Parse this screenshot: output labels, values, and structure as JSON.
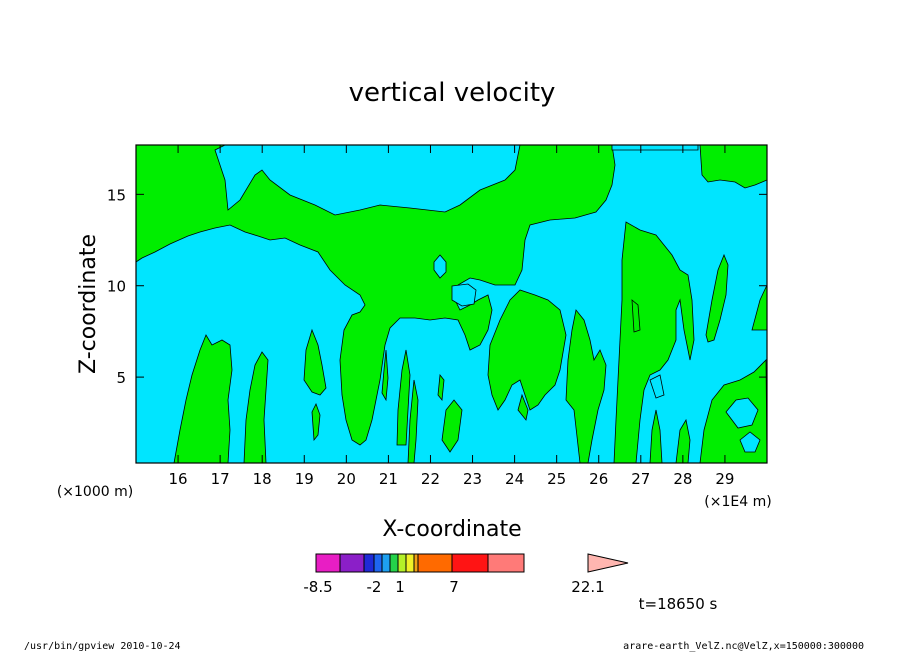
{
  "chart_data": {
    "type": "heatmap",
    "title": "vertical velocity",
    "xlabel": "X-coordinate",
    "ylabel": "Z-coordinate",
    "x_unit_left": "(×1000 m)",
    "x_unit_right": "(×1E4 m)",
    "x_ticks": [
      16,
      17,
      18,
      19,
      20,
      21,
      22,
      23,
      24,
      25,
      26,
      27,
      28,
      29
    ],
    "y_ticks": [
      5,
      10,
      15
    ],
    "xlim": [
      15.0,
      30.0
    ],
    "ylim": [
      0.3,
      17.7
    ],
    "grid": false,
    "field_colors": {
      "background": "#00e5ff",
      "positive_region": "#00ee00"
    },
    "colorbar": {
      "colors": [
        "#e81ec4",
        "#8b1fc8",
        "#1f2ad6",
        "#1e66f0",
        "#1ea0f0",
        "#24d24a",
        "#b4f028",
        "#f0f028",
        "#f0a014",
        "#ff6a00",
        "#ff1414",
        "#ff7a78",
        "#ffb6b0"
      ],
      "tick_labels": [
        "-8.5",
        "-2",
        "1",
        "7",
        "22.1"
      ]
    },
    "time_label": "t=18650 s"
  },
  "footer": {
    "left": "/usr/bin/gpview  2010-10-24",
    "right": "arare-earth_VelZ.nc@VelZ,x=150000:300000"
  }
}
